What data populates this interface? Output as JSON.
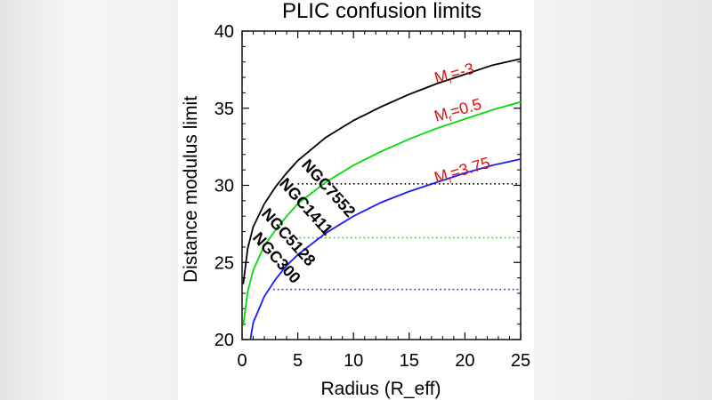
{
  "chart_data": {
    "type": "line",
    "title": "PLIC confusion limits",
    "xlabel": "Radius (R_eff)",
    "ylabel": "Distance modulus limit",
    "xlim": [
      0,
      25
    ],
    "ylim": [
      20,
      40
    ],
    "xticks": [
      "0",
      "5",
      "10",
      "15",
      "20",
      "25"
    ],
    "yticks": [
      "20",
      "25",
      "30",
      "35",
      "40"
    ],
    "series": [
      {
        "name": "M_r=-3",
        "label_base": "M",
        "label_sub": "r",
        "label_value": "=-3",
        "color": "#000000",
        "x": [
          0.1,
          0.5,
          1,
          2,
          3,
          4,
          5,
          7.5,
          10,
          12.5,
          15,
          17.5,
          20,
          22.5,
          25
        ],
        "y": [
          23.6,
          25.9,
          27.3,
          28.8,
          29.9,
          30.8,
          31.6,
          33.1,
          34.2,
          35.1,
          35.9,
          36.6,
          37.2,
          37.8,
          38.2
        ]
      },
      {
        "name": "M_r=0.5",
        "label_base": "M",
        "label_sub": "r",
        "label_value": "=0.5",
        "color": "#00dd00",
        "x": [
          0.1,
          0.5,
          1,
          2,
          3,
          4,
          5,
          7.5,
          10,
          12.5,
          15,
          17.5,
          20,
          22.5,
          25
        ],
        "y": [
          20.9,
          23.1,
          24.5,
          26.1,
          27.1,
          28.0,
          28.8,
          30.2,
          31.3,
          32.2,
          33.0,
          33.7,
          34.3,
          34.9,
          35.4
        ]
      },
      {
        "name": "M_r=3.75",
        "label_base": "M",
        "label_sub": "r",
        "label_value": "=3.75",
        "color": "#1a1aff",
        "x": [
          0.75,
          1,
          2,
          3,
          4,
          5,
          7.5,
          10,
          12.5,
          15,
          17.5,
          20,
          22.5,
          25
        ],
        "y": [
          20.0,
          21.1,
          22.8,
          23.9,
          24.8,
          25.5,
          26.9,
          28.0,
          28.9,
          29.6,
          30.2,
          30.8,
          31.3,
          31.7
        ]
      }
    ],
    "hlines": [
      {
        "name": "NGC7552",
        "y": 30.1,
        "x_start": 5.0,
        "x_end": 25,
        "color": "#000000"
      },
      {
        "name": "NGC1411",
        "y": 26.6,
        "x_start": 4.0,
        "x_end": 25,
        "color": "#00dd00"
      },
      {
        "name": "NGC5128",
        "y": 23.25,
        "x_start": 2.8,
        "x_end": 25,
        "color": "#1a1aff"
      }
    ],
    "galaxy_labels": [
      "NGC7552",
      "NGC1411",
      "NGC5128",
      "NGC300"
    ]
  }
}
